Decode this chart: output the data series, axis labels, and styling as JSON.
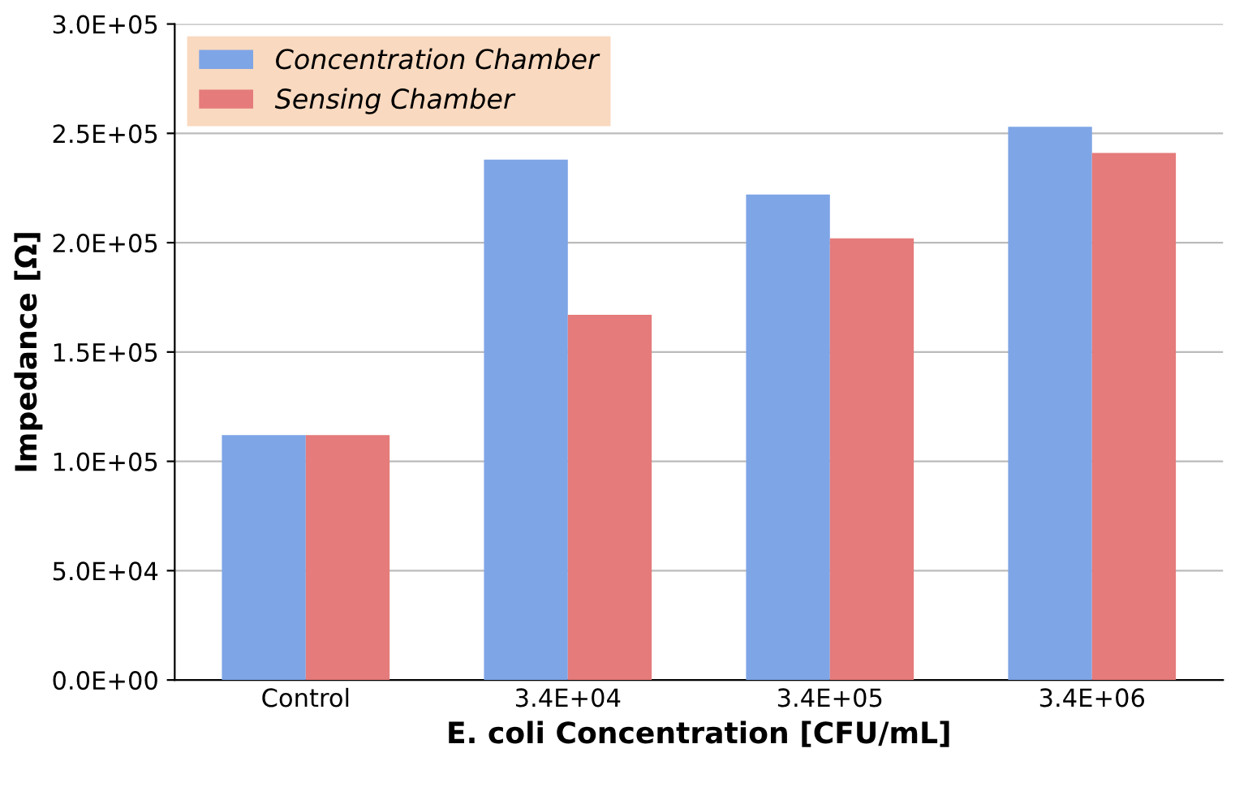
{
  "chart_data": {
    "type": "bar",
    "xlabel": "E. coli Concentration [CFU/mL]",
    "ylabel": "Impedance [Ω]",
    "categories": [
      "Control",
      "3.4E+04",
      "3.4E+05",
      "3.4E+06"
    ],
    "series": [
      {
        "name": "Concentration Chamber",
        "color": "#7ea5e6",
        "values": [
          112000,
          238000,
          222000,
          253000
        ]
      },
      {
        "name": "Sensing Chamber",
        "color": "#e57b7b",
        "values": [
          112000,
          167000,
          202000,
          241000
        ]
      }
    ],
    "ylim": [
      0,
      300000
    ],
    "yticks": [
      {
        "value": 0,
        "label": "0.0E+00"
      },
      {
        "value": 50000,
        "label": "5.0E+04"
      },
      {
        "value": 100000,
        "label": "1.0E+05"
      },
      {
        "value": 150000,
        "label": "1.5E+05"
      },
      {
        "value": 200000,
        "label": "2.0E+05"
      },
      {
        "value": 250000,
        "label": "2.5E+05"
      },
      {
        "value": 300000,
        "label": "3.0E+05"
      }
    ],
    "grid": "y",
    "legend": "top left"
  }
}
